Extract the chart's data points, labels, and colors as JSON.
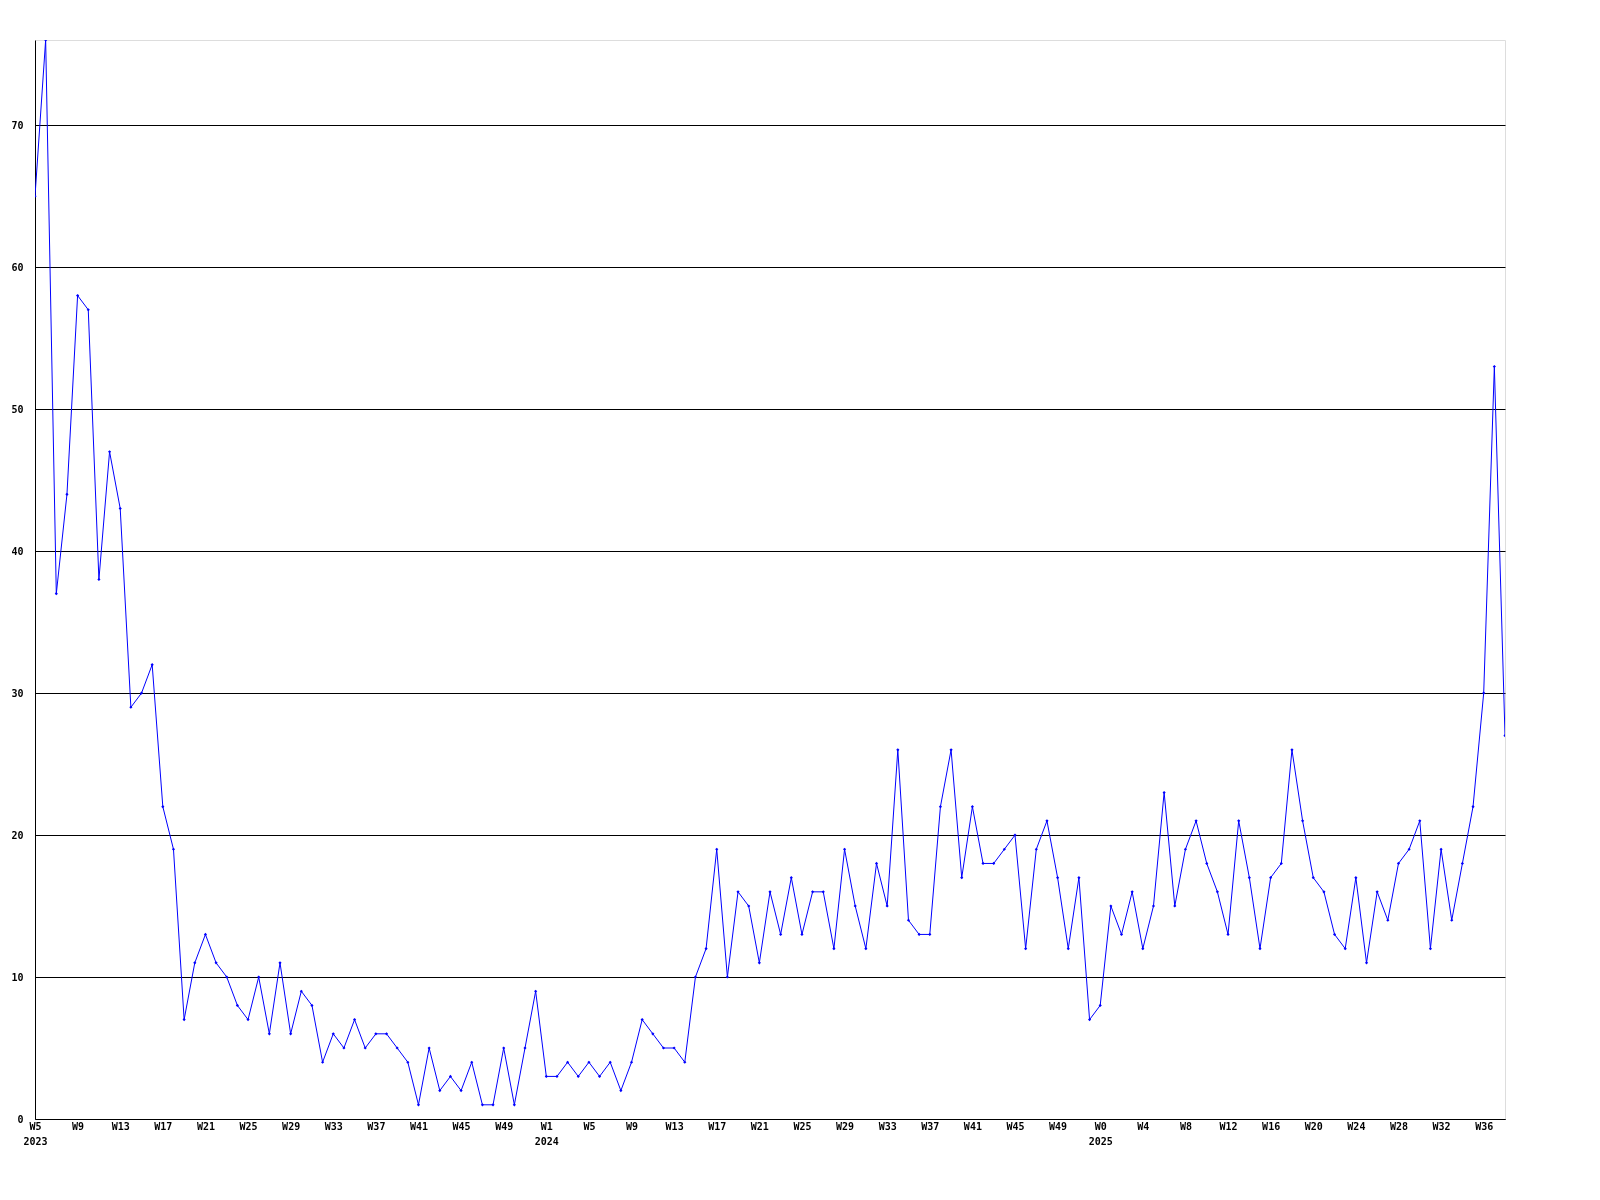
{
  "chart_data": {
    "type": "line",
    "categories": [
      "W5\n2023",
      null,
      null,
      null,
      "W9",
      null,
      null,
      null,
      "W13",
      null,
      null,
      null,
      "W17",
      null,
      null,
      null,
      "W21",
      null,
      null,
      null,
      "W25",
      null,
      null,
      null,
      "W29",
      null,
      null,
      null,
      "W33",
      null,
      null,
      null,
      "W37",
      null,
      null,
      null,
      "W41",
      null,
      null,
      null,
      "W45",
      null,
      null,
      null,
      "W49",
      null,
      null,
      null,
      "W1\n2024",
      null,
      null,
      null,
      "W5",
      null,
      null,
      null,
      "W9",
      null,
      null,
      null,
      "W13",
      null,
      null,
      null,
      "W17",
      null,
      null,
      null,
      "W21",
      null,
      null,
      null,
      "W25",
      null,
      null,
      null,
      "W29",
      null,
      null,
      null,
      "W33",
      null,
      null,
      null,
      "W37",
      null,
      null,
      null,
      "W41",
      null,
      null,
      null,
      "W45",
      null,
      null,
      null,
      "W49",
      null,
      null,
      null,
      "W0\n2025",
      null,
      null,
      null,
      "W4",
      null,
      null,
      null,
      "W8",
      null,
      null,
      null,
      "W12",
      null,
      null,
      null,
      "W16",
      null,
      null,
      null,
      "W20",
      null,
      null,
      null,
      "W24",
      null,
      null,
      null,
      "W28",
      null,
      null,
      null,
      "W32",
      null,
      null,
      null,
      "W36",
      null,
      null
    ],
    "series": [
      {
        "color": "#0000ff",
        "values": [
          65,
          76,
          37,
          44,
          58,
          57,
          38,
          47,
          43,
          29,
          30,
          32,
          22,
          19,
          7,
          11,
          13,
          11,
          10,
          8,
          7,
          10,
          6,
          11,
          6,
          9,
          8,
          4,
          6,
          5,
          7,
          5,
          6,
          6,
          5,
          4,
          1,
          5,
          2,
          3,
          2,
          4,
          1,
          1,
          5,
          1,
          5,
          9,
          3,
          3,
          4,
          3,
          4,
          3,
          4,
          2,
          4,
          7,
          6,
          5,
          5,
          4,
          10,
          12,
          19,
          10,
          16,
          15,
          11,
          16,
          13,
          17,
          13,
          16,
          16,
          12,
          19,
          15,
          12,
          18,
          15,
          26,
          14,
          13,
          13,
          22,
          26,
          17,
          22,
          18,
          18,
          19,
          20,
          12,
          19,
          21,
          17,
          12,
          17,
          7,
          8,
          15,
          13,
          16,
          12,
          15,
          23,
          15,
          19,
          21,
          18,
          16,
          13,
          21,
          17,
          12,
          17,
          18,
          26,
          21,
          17,
          16,
          13,
          12,
          17,
          11,
          16,
          14,
          18,
          19,
          21,
          12,
          19,
          14,
          18,
          22,
          30,
          53,
          27
        ]
      }
    ],
    "ylim": [
      0,
      76
    ],
    "yticks": [
      0,
      10,
      20,
      30,
      40,
      50,
      60,
      70
    ],
    "grid": "y",
    "legend": false,
    "marker": "diamond",
    "line_style": "solid"
  }
}
